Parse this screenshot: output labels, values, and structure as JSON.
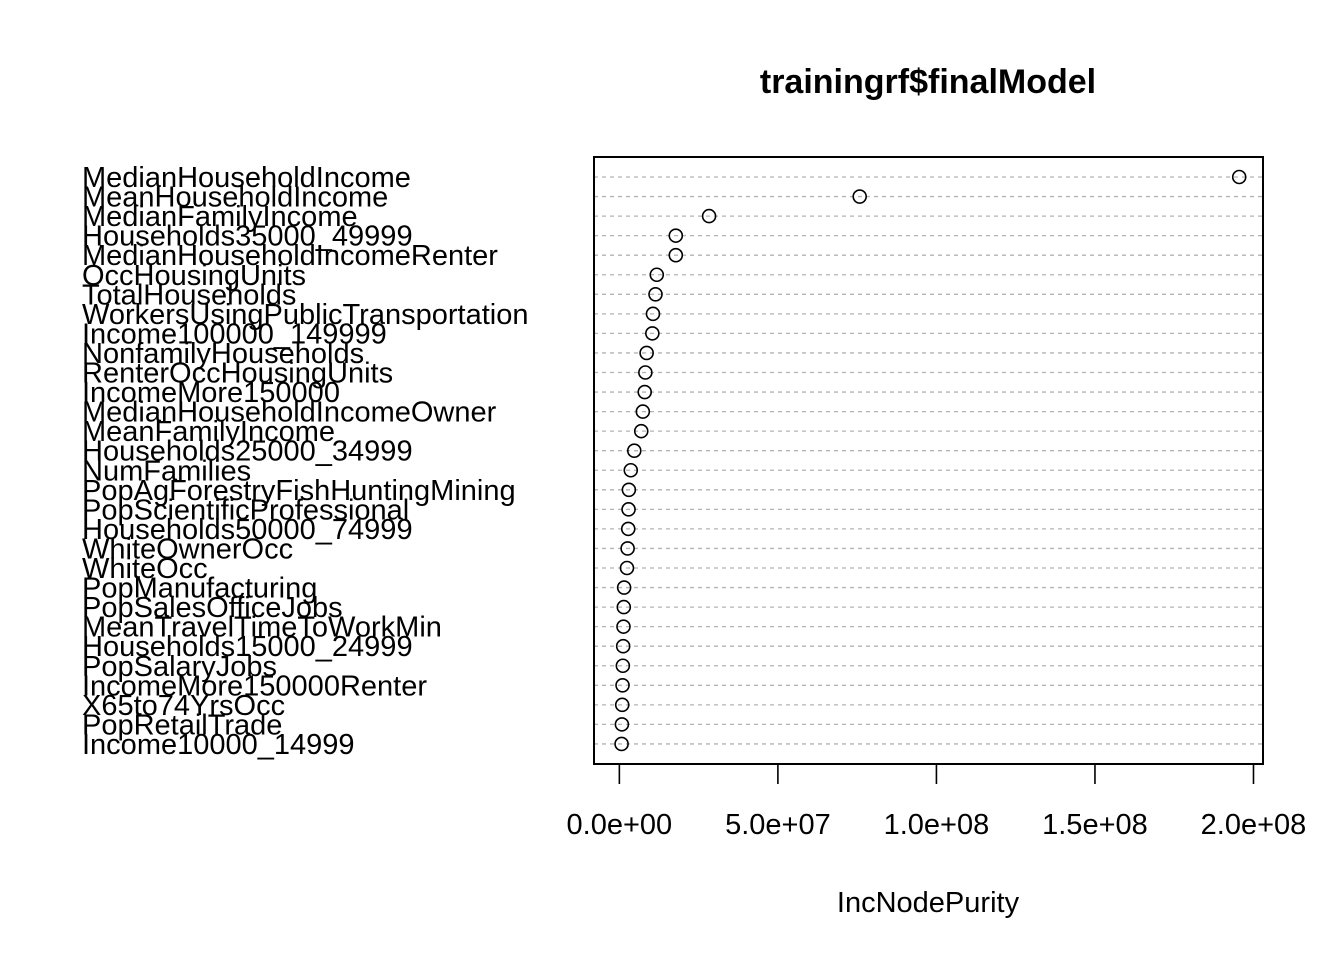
{
  "chart_data": {
    "type": "scatter",
    "title": "trainingrf$finalModel",
    "xlabel": "IncNodePurity",
    "ylabel": "",
    "xlim": [
      -8000000.0,
      203000000.0
    ],
    "xticks": [
      0,
      50000000.0,
      100000000.0,
      150000000.0,
      200000000.0
    ],
    "xtick_labels": [
      "0.0e+00",
      "5.0e+07",
      "1.0e+08",
      "1.5e+08",
      "2.0e+08"
    ],
    "grid": "horizontal dashed",
    "categories": [
      "MedianHouseholdIncome",
      "MeanHouseholdIncome",
      "MedianFamilyIncome",
      "Households35000_49999",
      "MedianHouseholdIncomeRenter",
      "OccHousingUnits",
      "TotalHouseholds",
      "WorkersUsingPublicTransportation",
      "Income100000_149999",
      "NonfamilyHouseholds",
      "RenterOccHousingUnits",
      "IncomeMore150000",
      "MedianHouseholdIncomeOwner",
      "MeanFamilyIncome",
      "Households25000_34999",
      "NumFamilies",
      "PopAgForestryFishHuntingMining",
      "PopScientificProfessional",
      "Households50000_74999",
      "WhiteOwnerOcc",
      "WhiteOcc",
      "PopManufacturing",
      "PopSalesOfficeJobs",
      "MeanTravelTimeToWorkMin",
      "Households15000_24999",
      "PopSalaryJobs",
      "IncomeMore150000Renter",
      "X65to74YrsOcc",
      "PopRetailTrade",
      "Income10000_14999"
    ],
    "values": [
      195500000,
      75800000,
      28300000,
      17800000,
      17800000,
      11800000,
      11400000,
      10600000,
      10400000,
      8600000,
      8200000,
      8000000,
      7400000,
      6900000,
      4700000,
      3600000,
      3000000,
      2900000,
      2800000,
      2600000,
      2400000,
      1500000,
      1400000,
      1300000,
      1200000,
      1100000,
      1000000,
      900000,
      800000,
      700000
    ]
  }
}
